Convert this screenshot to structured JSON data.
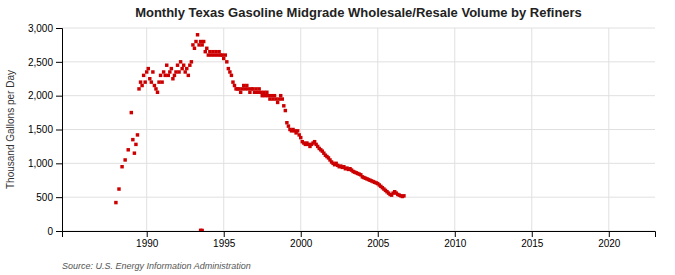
{
  "chart_data": {
    "type": "scatter",
    "title": "Monthly Texas Gasoline Midgrade Wholesale/Resale Volume by Refiners",
    "ylabel": "Thousand Gallons per Day",
    "source": "Source: U.S. Energy Information Administration",
    "color": "#cc0000",
    "marker": "square",
    "grid": true,
    "xlim": [
      1984.5,
      2023
    ],
    "ylim": [
      0,
      3000
    ],
    "xticks": [
      1990,
      1995,
      2000,
      2005,
      2010,
      2015,
      2020
    ],
    "yticks": [
      0,
      500,
      {
        "value": 1000,
        "label": "1,000"
      },
      {
        "value": 1500,
        "label": "1,500"
      },
      {
        "value": 2000,
        "label": "2,000"
      },
      {
        "value": 2500,
        "label": "2,500"
      },
      {
        "value": 3000,
        "label": "3,000"
      }
    ],
    "x": [
      1988.0,
      1988.2,
      1988.4,
      1988.6,
      1988.8,
      1989.0,
      1989.1,
      1989.2,
      1989.3,
      1989.4,
      1989.5,
      1989.6,
      1989.7,
      1989.8,
      1989.9,
      1990.0,
      1990.1,
      1990.2,
      1990.3,
      1990.4,
      1990.5,
      1990.6,
      1990.7,
      1990.8,
      1990.9,
      1991.0,
      1991.1,
      1991.2,
      1991.3,
      1991.4,
      1991.5,
      1991.6,
      1991.7,
      1991.8,
      1991.9,
      1992.0,
      1992.1,
      1992.2,
      1992.3,
      1992.4,
      1992.5,
      1992.6,
      1992.7,
      1992.8,
      1992.9,
      1993.0,
      1993.1,
      1993.2,
      1993.3,
      1993.4,
      1993.5,
      1993.6,
      1993.7,
      1993.8,
      1993.9,
      1994.0,
      1994.1,
      1994.2,
      1994.3,
      1994.4,
      1994.5,
      1994.6,
      1994.7,
      1994.8,
      1994.9,
      1995.0,
      1995.1,
      1995.2,
      1995.3,
      1995.4,
      1995.5,
      1995.6,
      1995.7,
      1995.8,
      1995.9,
      1996.0,
      1996.1,
      1996.2,
      1996.3,
      1996.4,
      1996.5,
      1996.6,
      1996.7,
      1996.8,
      1996.9,
      1997.0,
      1997.1,
      1997.2,
      1997.3,
      1997.4,
      1997.5,
      1997.6,
      1997.7,
      1997.8,
      1997.9,
      1998.0,
      1998.1,
      1998.2,
      1998.3,
      1998.4,
      1998.5,
      1998.6,
      1998.7,
      1998.8,
      1998.9,
      1999.0,
      1999.1,
      1999.2,
      1999.3,
      1999.4,
      1999.5,
      1999.6,
      1999.7,
      1999.8,
      1999.9,
      2000.0,
      2000.1,
      2000.2,
      2000.3,
      2000.4,
      2000.5,
      2000.6,
      2000.7,
      2000.8,
      2000.9,
      2001.0,
      2001.1,
      2001.2,
      2001.3,
      2001.4,
      2001.5,
      2001.6,
      2001.7,
      2001.8,
      2001.9,
      2002.0,
      2002.1,
      2002.2,
      2002.3,
      2002.4,
      2002.5,
      2002.6,
      2002.7,
      2002.8,
      2002.9,
      2003.0,
      2003.1,
      2003.2,
      2003.3,
      2003.4,
      2003.5,
      2003.6,
      2003.7,
      2003.8,
      2003.9,
      2004.0,
      2004.1,
      2004.2,
      2004.3,
      2004.4,
      2004.5,
      2004.6,
      2004.7,
      2004.8,
      2004.9,
      2005.0,
      2005.1,
      2005.2,
      2005.3,
      2005.4,
      2005.5,
      2005.6,
      2005.7,
      2005.8,
      2005.9,
      2006.0,
      2006.1,
      2006.2,
      2006.3,
      2006.4,
      2006.5,
      2006.6,
      2006.7,
      1993.5,
      1993.6
    ],
    "values": [
      420,
      620,
      950,
      1050,
      1200,
      1750,
      1350,
      1150,
      1280,
      1420,
      2100,
      2200,
      2150,
      2300,
      2200,
      2350,
      2400,
      2250,
      2200,
      2350,
      2150,
      2100,
      2050,
      2200,
      2300,
      2200,
      2350,
      2300,
      2450,
      2300,
      2350,
      2400,
      2250,
      2300,
      2350,
      2450,
      2350,
      2500,
      2400,
      2450,
      2350,
      2400,
      2300,
      2450,
      2500,
      2750,
      2700,
      2800,
      2900,
      2750,
      2800,
      2750,
      2800,
      2650,
      2700,
      2600,
      2650,
      2600,
      2650,
      2600,
      2650,
      2600,
      2650,
      2600,
      2600,
      2550,
      2600,
      2500,
      2400,
      2350,
      2300,
      2200,
      2150,
      2100,
      2100,
      2100,
      2050,
      2100,
      2150,
      2100,
      2150,
      2100,
      2050,
      2100,
      2100,
      2050,
      2100,
      2050,
      2100,
      2050,
      2000,
      2050,
      2000,
      2050,
      2000,
      1950,
      2000,
      1950,
      2000,
      1950,
      1900,
      1950,
      2000,
      1950,
      1850,
      1780,
      1600,
      1550,
      1500,
      1480,
      1500,
      1480,
      1450,
      1480,
      1420,
      1380,
      1320,
      1300,
      1280,
      1300,
      1280,
      1250,
      1280,
      1300,
      1320,
      1280,
      1250,
      1220,
      1200,
      1180,
      1150,
      1120,
      1100,
      1080,
      1050,
      1020,
      1000,
      980,
      1000,
      970,
      950,
      960,
      940,
      950,
      920,
      930,
      910,
      920,
      900,
      880,
      870,
      860,
      850,
      840,
      830,
      800,
      790,
      780,
      770,
      760,
      750,
      740,
      730,
      720,
      710,
      700,
      680,
      660,
      640,
      620,
      600,
      580,
      560,
      540,
      530,
      560,
      580,
      560,
      540,
      530,
      520,
      510,
      520,
      10,
      8
    ]
  }
}
